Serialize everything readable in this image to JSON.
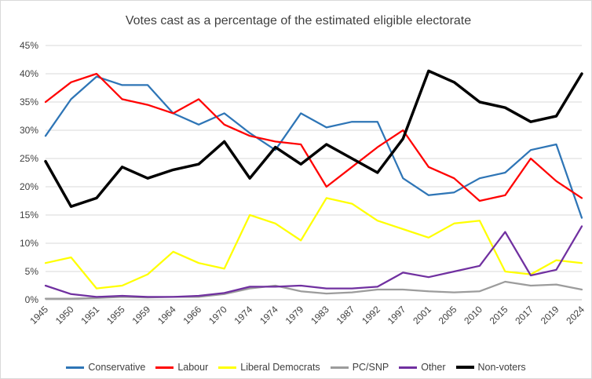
{
  "chart_data": {
    "type": "line",
    "title": "Votes cast as a percentage of the estimated eligible electorate",
    "categories": [
      "1945",
      "1950",
      "1951",
      "1955",
      "1959",
      "1964",
      "1966",
      "1970",
      "1974",
      "1974",
      "1979",
      "1983",
      "1987",
      "1992",
      "1997",
      "2001",
      "2005",
      "2010",
      "2015",
      "2017",
      "2019",
      "2024"
    ],
    "ylabel": "",
    "xlabel": "",
    "ylim": [
      0,
      45
    ],
    "ytick_step": 5,
    "ytick_format": "percent",
    "grid": true,
    "legend_position": "bottom",
    "colors": {
      "conservative": "#2E75B6",
      "labour": "#FF0000",
      "liberal_democrats": "#FFFF00",
      "pc_snp": "#9C9C9C",
      "other": "#7030A0",
      "non_voters": "#000000"
    },
    "series": [
      {
        "name": "Conservative",
        "color": "#2E75B6",
        "width": 2.25,
        "values": [
          29,
          35.5,
          39.5,
          38,
          38,
          33,
          31,
          33,
          29.5,
          26.5,
          33,
          30.5,
          31.5,
          31.5,
          21.5,
          18.5,
          19,
          21.5,
          22.5,
          26.5,
          27.5,
          14.5
        ]
      },
      {
        "name": "Labour",
        "color": "#FF0000",
        "width": 2.25,
        "values": [
          35,
          38.5,
          40,
          35.5,
          34.5,
          33,
          35.5,
          31,
          29,
          28,
          27.5,
          20,
          23.5,
          27,
          30,
          23.5,
          21.5,
          17.5,
          18.5,
          25,
          21,
          18
        ]
      },
      {
        "name": "Liberal Democrats",
        "color": "#FFFF00",
        "width": 2.25,
        "values": [
          6.5,
          7.5,
          2,
          2.5,
          4.5,
          8.5,
          6.5,
          5.5,
          15,
          13.5,
          10.5,
          18,
          17,
          14,
          12.5,
          11,
          13.5,
          14,
          5,
          4.5,
          7,
          6.5
        ]
      },
      {
        "name": "PC/SNP",
        "color": "#9C9C9C",
        "width": 2.25,
        "values": [
          0.2,
          0.2,
          0.3,
          0.5,
          0.4,
          0.5,
          0.5,
          1,
          2,
          2.5,
          1.5,
          1.1,
          1.3,
          1.8,
          1.8,
          1.5,
          1.3,
          1.5,
          3.2,
          2.5,
          2.7,
          1.8
        ]
      },
      {
        "name": "Other",
        "color": "#7030A0",
        "width": 2.25,
        "values": [
          2.5,
          1,
          0.5,
          0.7,
          0.5,
          0.5,
          0.7,
          1.2,
          2.3,
          2.3,
          2.5,
          2,
          2,
          2.3,
          4.8,
          4,
          5,
          6,
          12,
          4.3,
          5.3,
          13
        ]
      },
      {
        "name": "Non-voters",
        "color": "#000000",
        "width": 3.5,
        "values": [
          24.5,
          16.5,
          18,
          23.5,
          21.5,
          23,
          24,
          28,
          21.5,
          27,
          24,
          27.5,
          25,
          22.5,
          28.5,
          40.5,
          38.5,
          35,
          34,
          31.5,
          32.5,
          40
        ]
      }
    ]
  }
}
